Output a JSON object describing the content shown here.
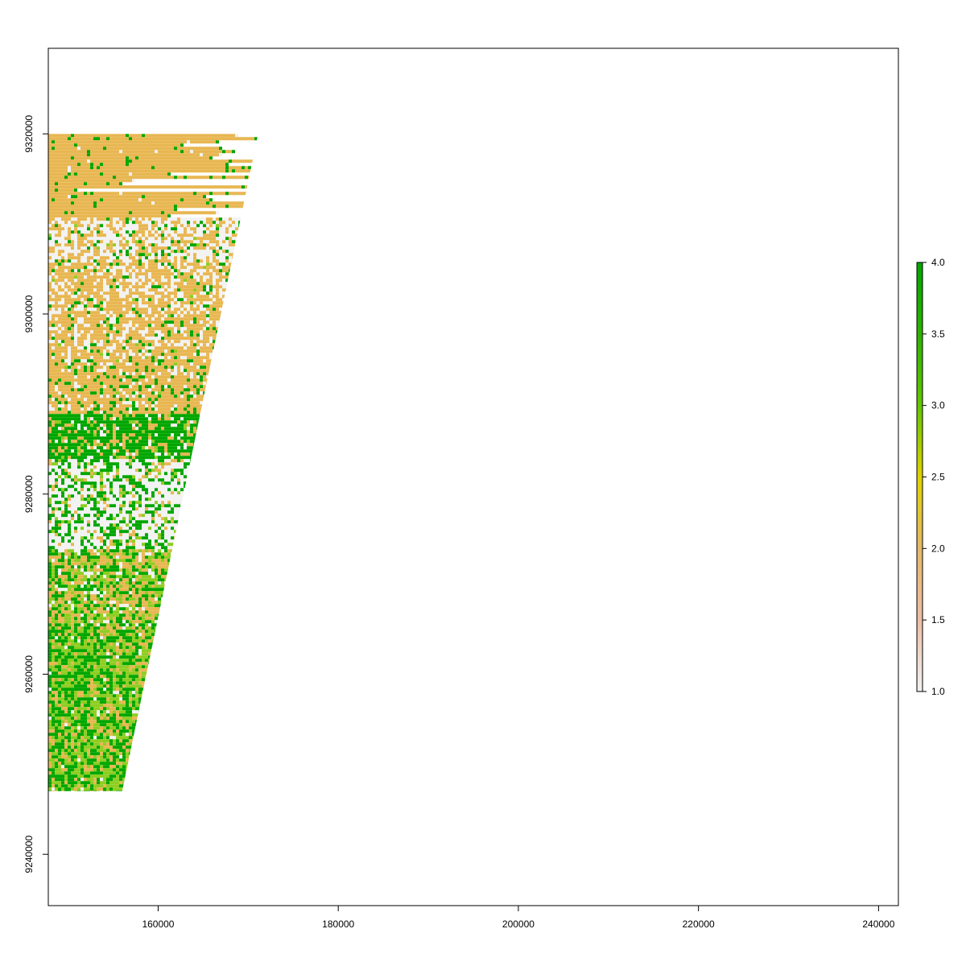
{
  "map": {
    "x_axis": {
      "range": [
        147800,
        242200
      ],
      "ticks": [
        {
          "value": 160000,
          "label": "160000"
        },
        {
          "value": 180000,
          "label": "180000"
        },
        {
          "value": 200000,
          "label": "200000"
        },
        {
          "value": 220000,
          "label": "220000"
        },
        {
          "value": 240000,
          "label": "240000"
        }
      ]
    },
    "y_axis": {
      "range": [
        9234300,
        9329500
      ],
      "ticks": [
        {
          "value": 9240000,
          "label": "9240000"
        },
        {
          "value": 9260000,
          "label": "9260000"
        },
        {
          "value": 9280000,
          "label": "9280000"
        },
        {
          "value": 9300000,
          "label": "9300000"
        },
        {
          "value": 9320000,
          "label": "9320000"
        }
      ]
    },
    "raster": {
      "extent": {
        "xmin": 147800,
        "xmax": 171100,
        "ymin": 9247000,
        "ymax": 9320000
      },
      "right_edge": {
        "top_x": 171100,
        "bottom_x": 156000
      },
      "zones": [
        {
          "name": "sand",
          "from_y": 9320000,
          "to_y": 9311000,
          "mix": {
            "2": 0.94,
            "4": 0.05,
            "1": 0.01
          }
        },
        {
          "name": "coast-bright",
          "from_y": 9311000,
          "to_y": 9306000,
          "mix": {
            "1": 0.48,
            "2": 0.44,
            "4": 0.07,
            "3": 0.01
          }
        },
        {
          "name": "bright-sand",
          "from_y": 9306000,
          "to_y": 9295000,
          "mix": {
            "2": 0.62,
            "1": 0.28,
            "4": 0.09,
            "3": 0.01
          }
        },
        {
          "name": "sand-lower",
          "from_y": 9295000,
          "to_y": 9289000,
          "mix": {
            "2": 0.72,
            "1": 0.12,
            "4": 0.15,
            "3": 0.01
          }
        },
        {
          "name": "dense-veg",
          "from_y": 9289000,
          "to_y": 9284000,
          "mix": {
            "4": 0.68,
            "2": 0.18,
            "1": 0.1,
            "3": 0.04
          }
        },
        {
          "name": "bright-veg",
          "from_y": 9284000,
          "to_y": 9274000,
          "mix": {
            "1": 0.55,
            "4": 0.3,
            "2": 0.08,
            "3": 0.07
          }
        },
        {
          "name": "mixed",
          "from_y": 9274000,
          "to_y": 9266000,
          "mix": {
            "2": 0.38,
            "4": 0.28,
            "3": 0.26,
            "1": 0.08
          }
        },
        {
          "name": "crop",
          "from_y": 9266000,
          "to_y": 9247000,
          "mix": {
            "4": 0.45,
            "3": 0.35,
            "2": 0.17,
            "1": 0.03
          }
        }
      ],
      "class_colors": {
        "1": "#f2f2f2",
        "2": "#e8b752",
        "3": "#8fcd22",
        "4": "#00a600"
      }
    }
  },
  "legend": {
    "range": [
      1.0,
      4.0
    ],
    "labels": [
      "1.0",
      "1.5",
      "2.0",
      "2.5",
      "3.0",
      "3.5",
      "4.0"
    ],
    "values": [
      1.0,
      1.5,
      2.0,
      2.5,
      3.0,
      3.5,
      4.0
    ],
    "colors": [
      {
        "v": 1.0,
        "c": "#f2f2f2"
      },
      {
        "v": 1.5,
        "c": "#eebea6"
      },
      {
        "v": 2.0,
        "c": "#e6b96a"
      },
      {
        "v": 2.5,
        "c": "#e0d200"
      },
      {
        "v": 3.0,
        "c": "#63c600"
      },
      {
        "v": 3.5,
        "c": "#2db200"
      },
      {
        "v": 4.0,
        "c": "#00a600"
      }
    ]
  }
}
